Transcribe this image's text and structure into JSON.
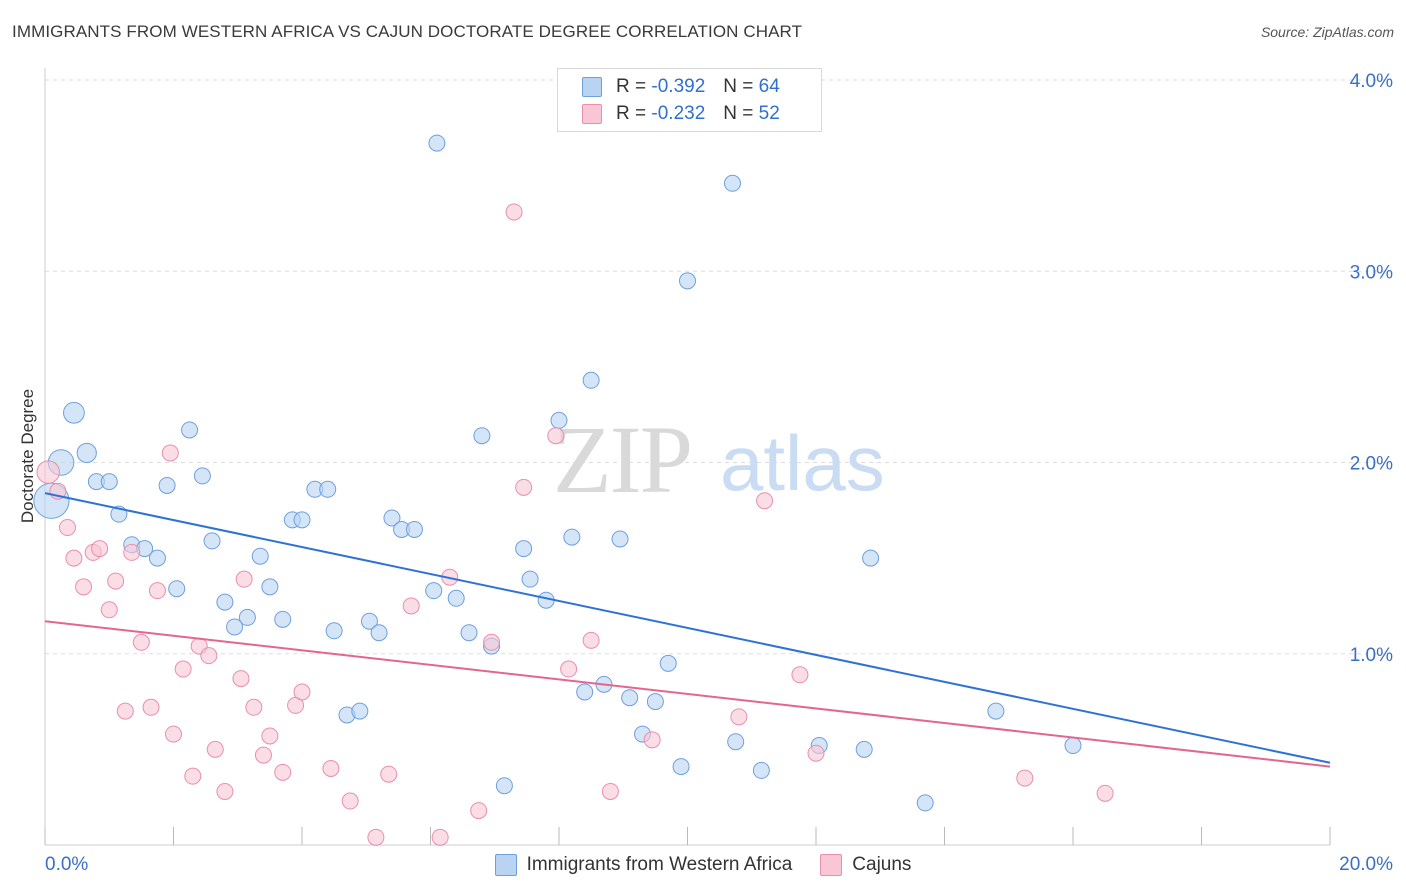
{
  "title": "IMMIGRANTS FROM WESTERN AFRICA VS CAJUN DOCTORATE DEGREE CORRELATION CHART",
  "source": "Source: ZipAtlas.com",
  "watermark": {
    "zip": "ZIP",
    "atlas": "atlas"
  },
  "legend": {
    "series1": {
      "r_label": "R =",
      "r_value": "-0.392",
      "n_label": "N =",
      "n_value": "64"
    },
    "series2": {
      "r_label": "R =",
      "r_value": "-0.232",
      "n_label": "N =",
      "n_value": "52"
    }
  },
  "colors": {
    "blue_fill": "#b9d3f3",
    "blue_stroke": "#6f9fdc",
    "blue_line": "#2f72d6",
    "pink_fill": "#f9c6d6",
    "pink_stroke": "#e88fad",
    "pink_line": "#e2668f",
    "tick_label": "#3a6fc4",
    "grid": "#dddddd"
  },
  "chart_data": {
    "type": "scatter",
    "title": "IMMIGRANTS FROM WESTERN AFRICA VS CAJUN DOCTORATE DEGREE CORRELATION CHART",
    "xlabel": "",
    "ylabel": "Doctorate Degree",
    "xlim": [
      0,
      20
    ],
    "ylim": [
      0,
      4.0
    ],
    "x_tick_labels": [
      "0.0%",
      "20.0%"
    ],
    "y_ticks": [
      1.0,
      2.0,
      3.0,
      4.0
    ],
    "y_tick_labels": [
      "1.0%",
      "2.0%",
      "3.0%",
      "4.0%"
    ],
    "grid": true,
    "series": [
      {
        "name": "Immigrants from Western Africa",
        "color": "#6f9fdc",
        "trend": {
          "x": [
            0,
            20
          ],
          "y": [
            1.84,
            0.43
          ]
        },
        "points": [
          [
            0.1,
            1.8,
            2.2
          ],
          [
            0.25,
            2.0,
            1.6
          ],
          [
            0.45,
            2.26,
            1.3
          ],
          [
            0.65,
            2.05,
            1.2
          ],
          [
            0.8,
            1.9,
            1.0
          ],
          [
            1.0,
            1.9,
            1.0
          ],
          [
            1.15,
            1.73,
            1.0
          ],
          [
            1.35,
            1.57,
            1.0
          ],
          [
            1.55,
            1.55,
            1.0
          ],
          [
            1.75,
            1.5,
            1.0
          ],
          [
            1.9,
            1.88,
            1.0
          ],
          [
            2.05,
            1.34,
            1.0
          ],
          [
            2.25,
            2.17,
            1.0
          ],
          [
            2.45,
            1.93,
            1.0
          ],
          [
            2.6,
            1.59,
            1.0
          ],
          [
            2.8,
            1.27,
            1.0
          ],
          [
            2.95,
            1.14,
            1.0
          ],
          [
            3.15,
            1.19,
            1.0
          ],
          [
            3.35,
            1.51,
            1.0
          ],
          [
            3.5,
            1.35,
            1.0
          ],
          [
            3.7,
            1.18,
            1.0
          ],
          [
            3.85,
            1.7,
            1.0
          ],
          [
            4.0,
            1.7,
            1.0
          ],
          [
            4.2,
            1.86,
            1.0
          ],
          [
            4.4,
            1.86,
            1.0
          ],
          [
            4.5,
            1.12,
            1.0
          ],
          [
            4.7,
            0.68,
            1.0
          ],
          [
            4.9,
            0.7,
            1.0
          ],
          [
            5.05,
            1.17,
            1.0
          ],
          [
            5.2,
            1.11,
            1.0
          ],
          [
            5.4,
            1.71,
            1.0
          ],
          [
            5.55,
            1.65,
            1.0
          ],
          [
            5.75,
            1.65,
            1.0
          ],
          [
            6.05,
            1.33,
            1.0
          ],
          [
            6.1,
            3.67,
            1.0
          ],
          [
            6.4,
            1.29,
            1.0
          ],
          [
            6.6,
            1.11,
            1.0
          ],
          [
            6.8,
            2.14,
            1.0
          ],
          [
            6.95,
            1.04,
            1.0
          ],
          [
            7.15,
            0.31,
            1.0
          ],
          [
            7.45,
            1.55,
            1.0
          ],
          [
            7.55,
            1.39,
            1.0
          ],
          [
            7.8,
            1.28,
            1.0
          ],
          [
            8.0,
            2.22,
            1.0
          ],
          [
            8.2,
            1.61,
            1.0
          ],
          [
            8.4,
            0.8,
            1.0
          ],
          [
            8.5,
            2.43,
            1.0
          ],
          [
            8.7,
            0.84,
            1.0
          ],
          [
            8.95,
            1.6,
            1.0
          ],
          [
            9.1,
            0.77,
            1.0
          ],
          [
            9.3,
            0.58,
            1.0
          ],
          [
            9.5,
            0.75,
            1.0
          ],
          [
            9.7,
            0.95,
            1.0
          ],
          [
            9.9,
            0.41,
            1.0
          ],
          [
            10.0,
            2.95,
            1.0
          ],
          [
            10.7,
            3.46,
            1.0
          ],
          [
            10.75,
            0.54,
            1.0
          ],
          [
            11.15,
            0.39,
            1.0
          ],
          [
            12.05,
            0.52,
            1.0
          ],
          [
            12.75,
            0.5,
            1.0
          ],
          [
            12.85,
            1.5,
            1.0
          ],
          [
            13.7,
            0.22,
            1.0
          ],
          [
            14.8,
            0.7,
            1.0
          ],
          [
            16.0,
            0.52,
            1.0
          ]
        ]
      },
      {
        "name": "Cajuns",
        "color": "#e88fad",
        "trend": {
          "x": [
            0,
            20
          ],
          "y": [
            1.17,
            0.41
          ]
        },
        "points": [
          [
            0.05,
            1.95,
            1.4
          ],
          [
            0.2,
            1.85,
            1.0
          ],
          [
            0.35,
            1.66,
            1.0
          ],
          [
            0.45,
            1.5,
            1.0
          ],
          [
            0.6,
            1.35,
            1.0
          ],
          [
            0.75,
            1.53,
            1.0
          ],
          [
            0.85,
            1.55,
            1.0
          ],
          [
            1.0,
            1.23,
            1.0
          ],
          [
            1.1,
            1.38,
            1.0
          ],
          [
            1.25,
            0.7,
            1.0
          ],
          [
            1.35,
            1.53,
            1.0
          ],
          [
            1.5,
            1.06,
            1.0
          ],
          [
            1.65,
            0.72,
            1.0
          ],
          [
            1.75,
            1.33,
            1.0
          ],
          [
            1.95,
            2.05,
            1.0
          ],
          [
            2.0,
            0.58,
            1.0
          ],
          [
            2.15,
            0.92,
            1.0
          ],
          [
            2.3,
            0.36,
            1.0
          ],
          [
            2.4,
            1.04,
            1.0
          ],
          [
            2.55,
            0.99,
            1.0
          ],
          [
            2.65,
            0.5,
            1.0
          ],
          [
            2.8,
            0.28,
            1.0
          ],
          [
            3.05,
            0.87,
            1.0
          ],
          [
            3.1,
            1.39,
            1.0
          ],
          [
            3.25,
            0.72,
            1.0
          ],
          [
            3.4,
            0.47,
            1.0
          ],
          [
            3.5,
            0.57,
            1.0
          ],
          [
            3.7,
            0.38,
            1.0
          ],
          [
            3.9,
            0.73,
            1.0
          ],
          [
            4.0,
            0.8,
            1.0
          ],
          [
            4.45,
            0.4,
            1.0
          ],
          [
            4.75,
            0.23,
            1.0
          ],
          [
            5.15,
            0.04,
            1.0
          ],
          [
            5.35,
            0.37,
            1.0
          ],
          [
            5.7,
            1.25,
            1.0
          ],
          [
            6.15,
            0.04,
            1.0
          ],
          [
            6.3,
            1.4,
            1.0
          ],
          [
            6.75,
            0.18,
            1.0
          ],
          [
            6.95,
            1.06,
            1.0
          ],
          [
            7.3,
            3.31,
            1.0
          ],
          [
            7.45,
            1.87,
            1.0
          ],
          [
            7.95,
            2.14,
            1.0
          ],
          [
            8.15,
            0.92,
            1.0
          ],
          [
            8.5,
            1.07,
            1.0
          ],
          [
            8.8,
            0.28,
            1.0
          ],
          [
            9.45,
            0.55,
            1.0
          ],
          [
            10.8,
            0.67,
            1.0
          ],
          [
            11.2,
            1.8,
            1.0
          ],
          [
            11.75,
            0.89,
            1.0
          ],
          [
            12.0,
            0.48,
            1.0
          ],
          [
            15.25,
            0.35,
            1.0
          ],
          [
            16.5,
            0.27,
            1.0
          ]
        ]
      }
    ]
  },
  "bottom_legend": {
    "item1": "Immigrants from Western Africa",
    "item2": "Cajuns"
  }
}
